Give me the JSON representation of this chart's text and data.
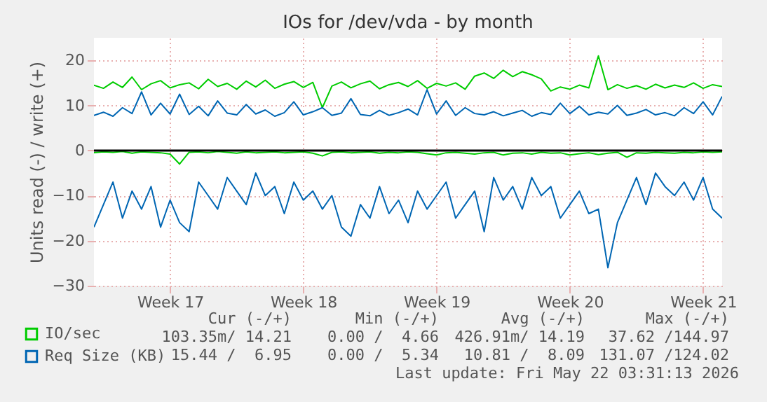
{
  "chart_data": {
    "type": "line",
    "title": "IOs for /dev/vda - by month",
    "ylabel": "Units read (-) / write (+)",
    "categories": [
      null,
      null,
      null,
      null,
      null,
      null,
      null,
      null,
      "Week 17",
      null,
      null,
      null,
      null,
      null,
      null,
      null,
      null,
      null,
      null,
      null,
      null,
      null,
      "Week 18",
      null,
      null,
      null,
      null,
      null,
      null,
      null,
      null,
      null,
      null,
      null,
      null,
      null,
      "Week 19",
      null,
      null,
      null,
      null,
      null,
      null,
      null,
      null,
      null,
      null,
      null,
      null,
      null,
      "Week 20",
      null,
      null,
      null,
      null,
      null,
      null,
      null,
      null,
      null,
      null,
      null,
      null,
      null,
      "Week 21",
      null,
      null
    ],
    "ylim": [
      -30,
      25
    ],
    "yticks": [
      -30,
      -20,
      -10,
      0,
      10,
      20
    ],
    "grid": true,
    "legend": "bottom",
    "marker": "none",
    "line_style": "solid",
    "ref_lines": [
      {
        "axis": "y",
        "value": 0,
        "color": "#000000"
      }
    ],
    "series": [
      {
        "color": "#00cc00",
        "values": [
          -0.5,
          -0.3,
          -0.4,
          -0.2,
          -0.6,
          -0.3,
          -0.4,
          -0.5,
          -0.8,
          -3.0,
          -0.4,
          -0.3,
          -0.5,
          -0.2,
          -0.4,
          -0.6,
          -0.3,
          -0.5,
          -0.4,
          -0.3,
          -0.5,
          -0.4,
          -0.3,
          -0.6,
          -1.2,
          -0.4,
          -0.3,
          -0.5,
          -0.4,
          -0.3,
          -0.6,
          -0.4,
          -0.5,
          -0.3,
          -0.4,
          -0.7,
          -1.0,
          -0.5,
          -0.4,
          -0.6,
          -0.8,
          -0.5,
          -0.4,
          -1.0,
          -0.6,
          -0.5,
          -0.8,
          -0.4,
          -0.6,
          -0.5,
          -1.0,
          -0.7,
          -0.5,
          -0.9,
          -0.6,
          -0.4,
          -1.5,
          -0.5,
          -0.6,
          -0.4,
          -0.5,
          -0.6,
          -0.4,
          -0.5,
          -0.3,
          -0.4,
          -0.3
        ]
      },
      {
        "name": "IO/sec",
        "color": "#00cc00",
        "values": [
          14.5,
          13.8,
          15.2,
          14.0,
          16.3,
          13.5,
          14.8,
          15.5,
          13.9,
          14.6,
          15.0,
          13.7,
          15.8,
          14.2,
          14.9,
          13.6,
          15.4,
          14.1,
          15.6,
          13.8,
          14.7,
          15.3,
          14.0,
          15.1,
          9.5,
          14.3,
          15.2,
          13.9,
          14.8,
          15.4,
          13.7,
          14.6,
          15.1,
          14.2,
          15.5,
          13.8,
          14.9,
          14.3,
          15.0,
          13.6,
          16.5,
          17.2,
          16.0,
          17.8,
          16.4,
          17.5,
          16.8,
          15.9,
          13.2,
          14.1,
          13.6,
          14.5,
          13.9,
          21.0,
          13.5,
          14.6,
          13.8,
          14.4,
          13.6,
          14.7,
          13.9,
          14.5,
          14.0,
          15.0,
          13.8,
          14.6,
          14.2
        ]
      },
      {
        "color": "#0066b3",
        "values": [
          -17,
          -12,
          -7,
          -15,
          -9,
          -13,
          -8,
          -17,
          -11,
          -16,
          -18,
          -7,
          -10,
          -13,
          -6,
          -9,
          -12,
          -5,
          -10,
          -8,
          -14,
          -7,
          -11,
          -9,
          -13,
          -10,
          -17,
          -19,
          -12,
          -15,
          -8,
          -14,
          -11,
          -16,
          -9,
          -13,
          -10,
          -7,
          -15,
          -12,
          -9,
          -18,
          -6,
          -11,
          -8,
          -13,
          -6,
          -10,
          -8,
          -15,
          -12,
          -9,
          -14,
          -13,
          -26,
          -16,
          -11,
          -6,
          -12,
          -5,
          -8,
          -10,
          -7,
          -11,
          -6,
          -13,
          -15
        ]
      },
      {
        "name": "Req Size (KB)",
        "color": "#0066b3",
        "values": [
          7.8,
          8.5,
          7.6,
          9.5,
          8.2,
          13.0,
          7.9,
          10.5,
          8.1,
          12.5,
          8.0,
          9.8,
          7.7,
          11.0,
          8.3,
          7.9,
          10.2,
          8.1,
          9.0,
          7.6,
          8.4,
          10.8,
          7.9,
          8.6,
          9.5,
          7.8,
          8.3,
          11.5,
          8.0,
          7.7,
          8.9,
          7.8,
          8.4,
          9.2,
          7.9,
          13.5,
          8.1,
          11.0,
          7.8,
          9.5,
          8.2,
          7.9,
          8.6,
          7.7,
          8.3,
          8.9,
          7.6,
          8.4,
          8.0,
          10.5,
          8.2,
          9.8,
          7.9,
          8.5,
          8.1,
          10.0,
          7.8,
          8.3,
          9.1,
          7.9,
          8.4,
          7.7,
          9.5,
          8.2,
          10.8,
          7.9,
          12.0
        ]
      }
    ],
    "annotations": [
      "Cur (-/+)",
      "Min (-/+)",
      "Avg (-/+)",
      "Max (-/+)",
      "103.35m/ 14.21",
      "0.00 /  4.66",
      "426.91m/ 14.19",
      "37.62 /144.97",
      "15.44 /  6.95",
      "0.00 /  5.34",
      "10.81 /  8.09",
      "131.07 /124.02",
      "Last update: Fri May 22 03:31:13 2026"
    ]
  }
}
